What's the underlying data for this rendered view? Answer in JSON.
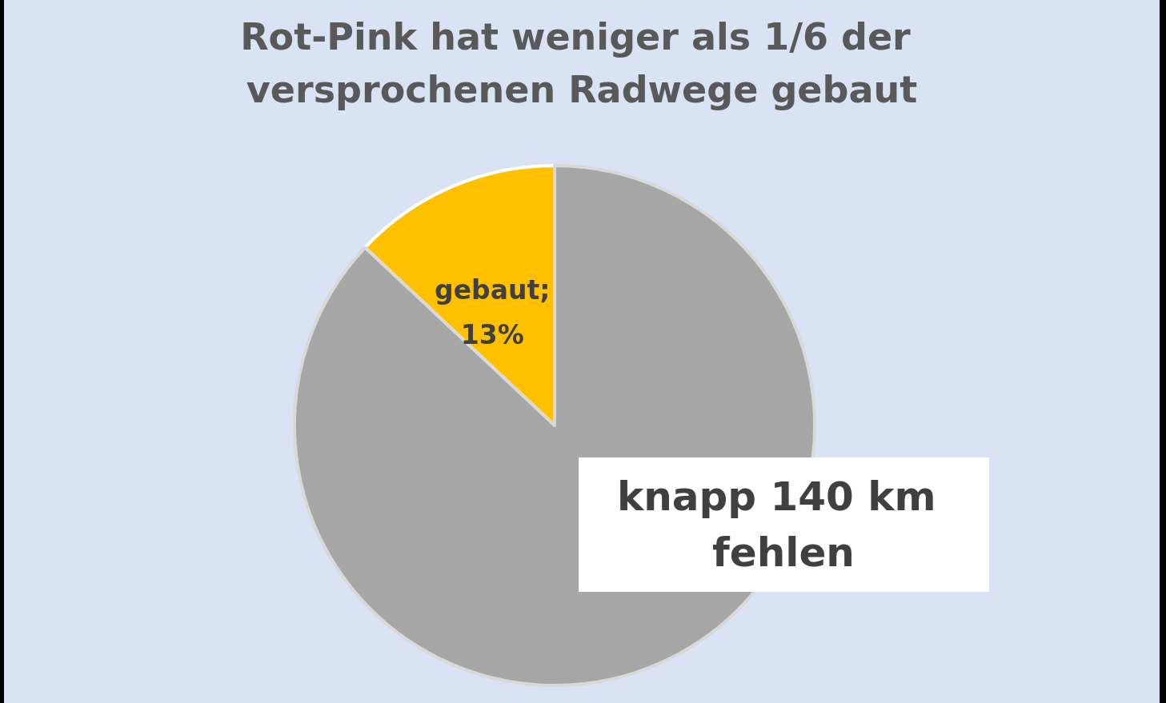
{
  "chart_data": {
    "type": "pie",
    "title": "Rot-Pink hat weniger als 1/6 der versprochenen Radwege gebaut",
    "categories": [
      null,
      null
    ],
    "values": [
      13,
      87
    ],
    "colors": [
      "#ffc000",
      "#a6a6a6"
    ],
    "value_labels": [
      "gebaut; 13%",
      null
    ],
    "annotations": [
      "knapp 140 km fehlen"
    ]
  }
}
